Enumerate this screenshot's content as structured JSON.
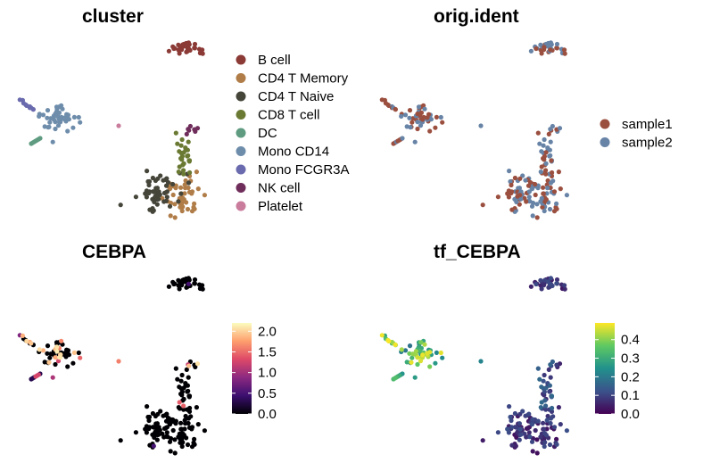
{
  "chart_data": [
    {
      "type": "scatter",
      "title": "cluster",
      "color_by": "categorical",
      "legend": {
        "placement": "right",
        "entries": [
          {
            "label": "B cell",
            "color": "#8B3A36"
          },
          {
            "label": "CD4 T Memory",
            "color": "#B07D48"
          },
          {
            "label": "CD4 T Naive",
            "color": "#45453A"
          },
          {
            "label": "CD8 T cell",
            "color": "#6A7A33"
          },
          {
            "label": "DC",
            "color": "#5E9B80"
          },
          {
            "label": "Mono CD14",
            "color": "#6E8DAB"
          },
          {
            "label": "Mono FCGR3A",
            "color": "#6A6AAE"
          },
          {
            "label": "NK cell",
            "color": "#6F2D5B"
          },
          {
            "label": "Platelet",
            "color": "#C97C9C"
          }
        ]
      }
    },
    {
      "type": "scatter",
      "title": "orig.ident",
      "color_by": "categorical",
      "legend": {
        "placement": "right",
        "entries": [
          {
            "label": "sample1",
            "color": "#9B4F3F"
          },
          {
            "label": "sample2",
            "color": "#6783A6"
          }
        ]
      }
    },
    {
      "type": "scatter",
      "title": "CEBPA",
      "color_by": "continuous",
      "colorbar": {
        "placement": "right",
        "range": [
          0,
          2.2
        ],
        "ticks": [
          "0.0",
          "0.5",
          "1.0",
          "1.5",
          "2.0"
        ],
        "tick_values": [
          0,
          0.5,
          1.0,
          1.5,
          2.0
        ],
        "palette": [
          "#000004",
          "#3B0F70",
          "#8C2981",
          "#DE4968",
          "#FE9F6D",
          "#FCFDBF"
        ]
      }
    },
    {
      "type": "scatter",
      "title": "tf_CEBPA",
      "color_by": "continuous",
      "colorbar": {
        "placement": "right",
        "range": [
          0,
          0.49
        ],
        "ticks": [
          "0.0",
          "0.1",
          "0.2",
          "0.3",
          "0.4"
        ],
        "tick_values": [
          0,
          0.1,
          0.2,
          0.3,
          0.4
        ],
        "palette": [
          "#440154",
          "#3B528B",
          "#21918C",
          "#5EC962",
          "#FDE725"
        ]
      }
    }
  ]
}
